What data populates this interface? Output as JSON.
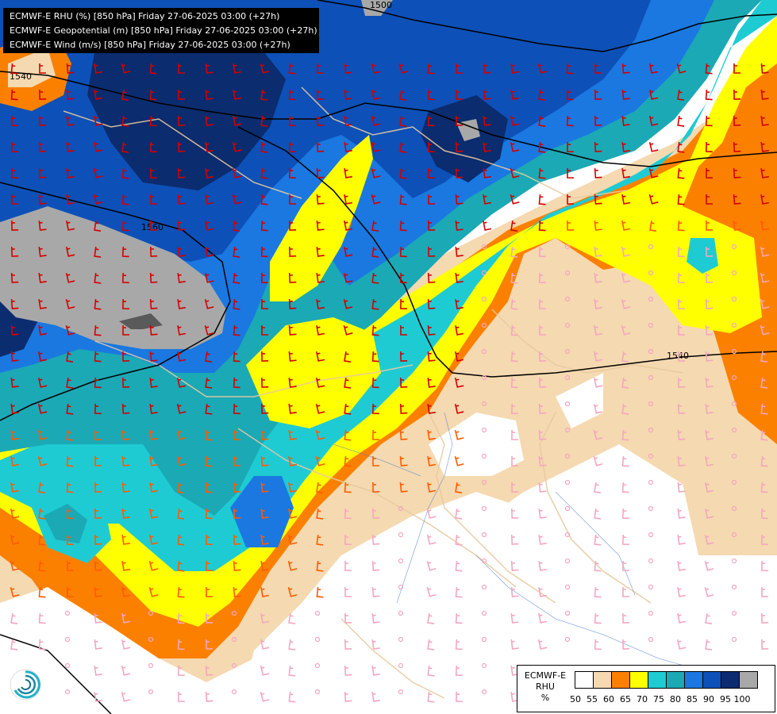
{
  "title_lines": [
    "ECMWF-E RHU (%) [850 hPa] Friday 27-06-2025 03:00 (+27h)",
    "ECMWF-E Geopotential (m) [850 hPa] Friday 27-06-2025 03:00 (+27h)",
    "ECMWF-E Wind (m/s) [850 hPa] Friday 27-06-2025 03:00 (+27h)"
  ],
  "contour_labels": [
    "1500",
    "1540",
    "1560",
    "1540"
  ],
  "legend": {
    "title_line1": "ECMWF-E",
    "title_line2": "RHU",
    "unit": "%",
    "ticks": [
      "50",
      "55",
      "60",
      "65",
      "70",
      "75",
      "80",
      "85",
      "90",
      "95",
      "100"
    ],
    "colors": [
      "#ffffff",
      "#f5d9b0",
      "#fb8000",
      "#ffff00",
      "#1ecbd3",
      "#1ba9b5",
      "#1a78e0",
      "#0d50b8",
      "#0b2c6e",
      "#a8a8a8",
      "#5a5a5a"
    ]
  },
  "logo": "ecmwf-swirl-logo"
}
